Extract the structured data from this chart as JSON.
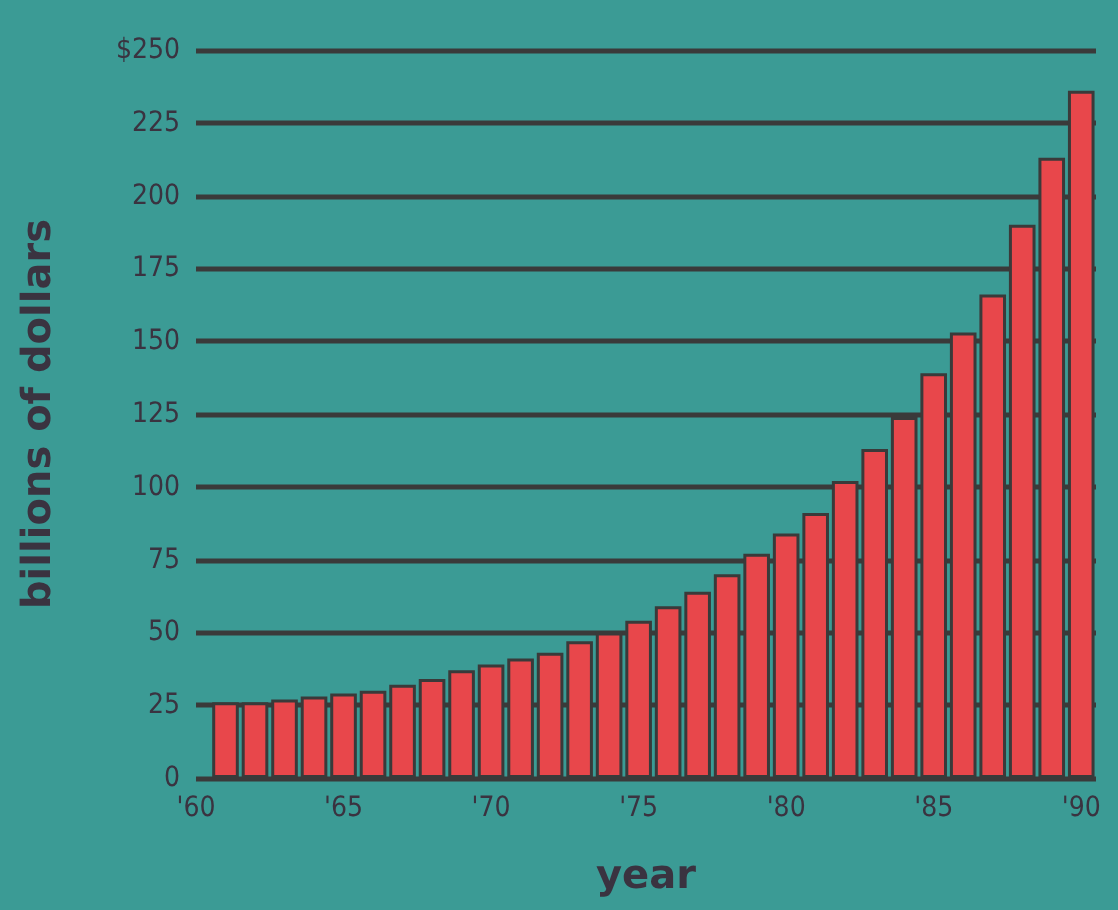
{
  "chart_data": {
    "type": "bar",
    "xlabel": "year",
    "ylabel": "billions of dollars",
    "x": [
      1961,
      1962,
      1963,
      1964,
      1965,
      1966,
      1967,
      1968,
      1969,
      1970,
      1971,
      1972,
      1973,
      1974,
      1975,
      1976,
      1977,
      1978,
      1979,
      1980,
      1981,
      1982,
      1983,
      1984,
      1985,
      1986,
      1987,
      1988,
      1989,
      1990
    ],
    "values": [
      26,
      26,
      27,
      28,
      29,
      30,
      32,
      34,
      37,
      39,
      41,
      43,
      47,
      50,
      54,
      59,
      64,
      70,
      77,
      84,
      91,
      102,
      113,
      124,
      139,
      153,
      166,
      190,
      213,
      236
    ],
    "color": "#e8474b",
    "xlim": [
      1960,
      1990.5
    ],
    "xticks": [
      {
        "value": 1960,
        "label": "'60"
      },
      {
        "value": 1965,
        "label": "'65"
      },
      {
        "value": 1970,
        "label": "'70"
      },
      {
        "value": 1975,
        "label": "'75"
      },
      {
        "value": 1980,
        "label": "'80"
      },
      {
        "value": 1985,
        "label": "'85"
      },
      {
        "value": 1990,
        "label": "'90"
      }
    ],
    "ylim": [
      0,
      250
    ],
    "yticks": [
      0,
      25,
      50,
      75,
      100,
      125,
      150,
      175,
      200,
      225,
      {
        "value": 250,
        "label": "$250"
      }
    ],
    "grid": "y"
  }
}
